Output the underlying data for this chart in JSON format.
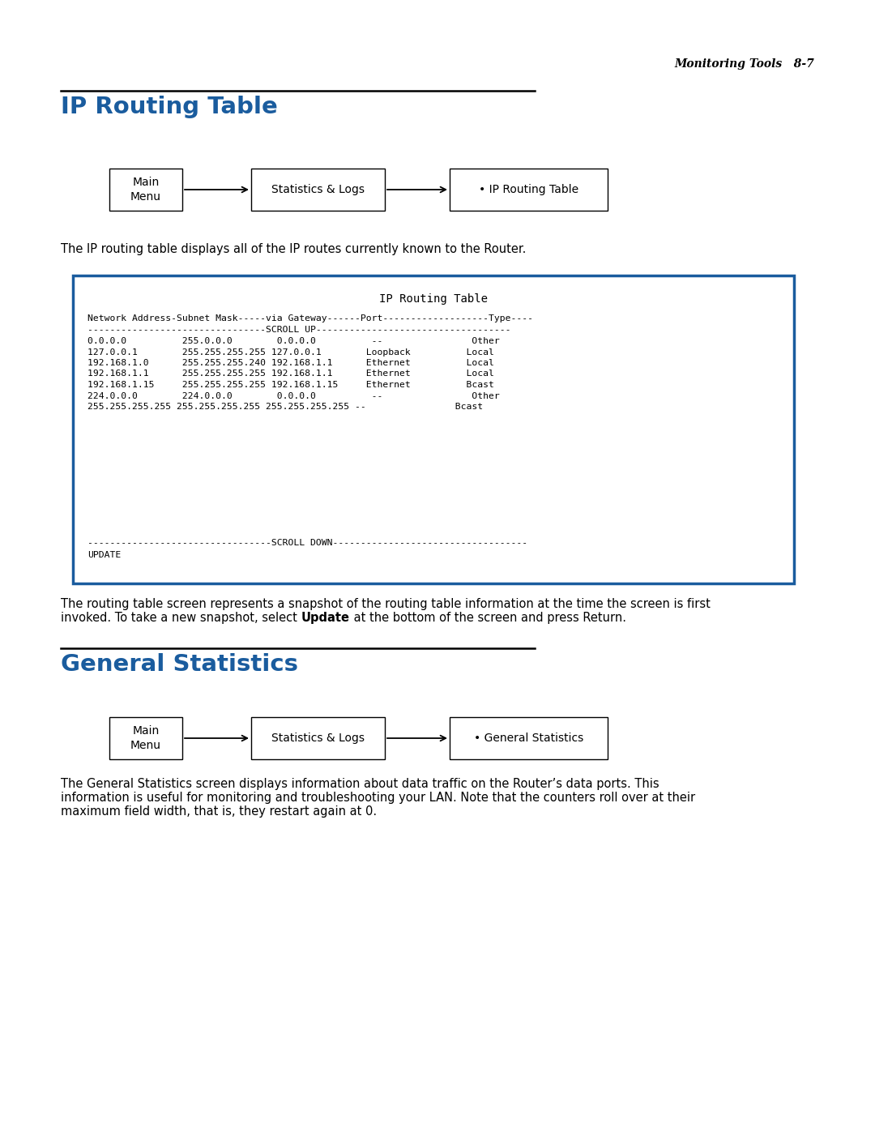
{
  "page_header": "Monitoring Tools   8-7",
  "section1_title": "IP Routing Table",
  "section1_title_color": "#1a5c9e",
  "section1_desc": "The IP routing table displays all of the IP routes currently known to the Router.",
  "terminal_title": "IP Routing Table",
  "terminal_header": "Network Address-Subnet Mask-----via Gateway------Port-------------------Type----",
  "terminal_scroll_up": "--------------------------------SCROLL UP-----------------------------------",
  "terminal_rows": [
    "0.0.0.0          255.0.0.0        0.0.0.0          --                Other",
    "127.0.0.1        255.255.255.255 127.0.0.1        Loopback          Local",
    "192.168.1.0      255.255.255.240 192.168.1.1      Ethernet          Local",
    "192.168.1.1      255.255.255.255 192.168.1.1      Ethernet          Local",
    "192.168.1.15     255.255.255.255 192.168.1.15     Ethernet          Bcast",
    "224.0.0.0        224.0.0.0        0.0.0.0          --                Other",
    "255.255.255.255 255.255.255.255 255.255.255.255 --                Bcast"
  ],
  "terminal_scroll_down": "---------------------------------SCROLL DOWN-----------------------------------",
  "terminal_update": "UPDATE",
  "terminal_border_color": "#1a5c9e",
  "after_text_line1": "The routing table screen represents a snapshot of the routing table information at the time the screen is first",
  "after_text_line2_prefix": "invoked. To take a new snapshot, select ",
  "after_text_bold": "Update",
  "after_text_suffix": " at the bottom of the screen and press Return.",
  "section2_title": "General Statistics",
  "section2_title_color": "#1a5c9e",
  "section2_desc_line1": "The General Statistics screen displays information about data traffic on the Router’s data ports. This",
  "section2_desc_line2": "information is useful for monitoring and troubleshooting your LAN. Note that the counters roll over at their",
  "section2_desc_line3": "maximum field width, that is, they restart again at 0.",
  "bg_color": "#ffffff",
  "text_color": "#000000"
}
